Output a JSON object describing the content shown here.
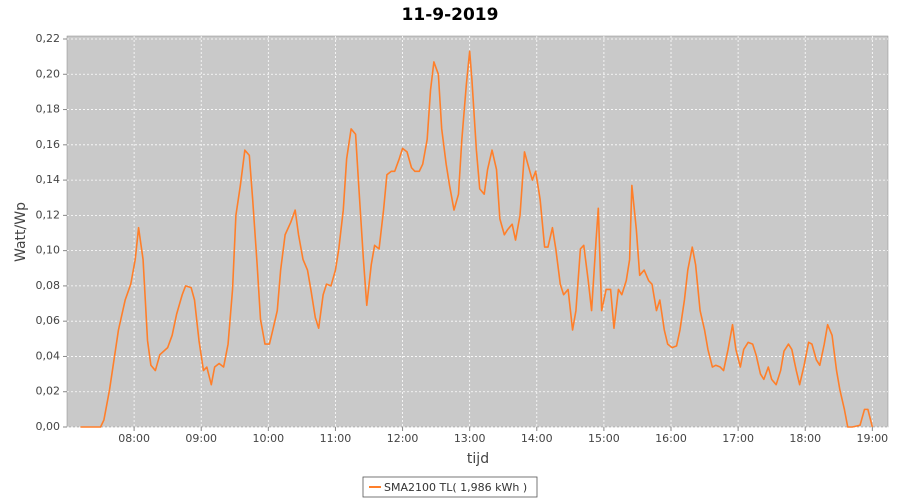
{
  "chart_data": {
    "type": "line",
    "title": "11-9-2019",
    "x_label": "tijd",
    "y_label": "Watt/Wp",
    "xlim": [
      "07:00",
      "19:14"
    ],
    "ylim": [
      0,
      0.22
    ],
    "xticks": [
      "08:00",
      "09:00",
      "10:00",
      "11:00",
      "12:00",
      "13:00",
      "14:00",
      "15:00",
      "16:00",
      "17:00",
      "18:00",
      "19:00"
    ],
    "yticks": [
      {
        "value": 0,
        "label": "0,00"
      },
      {
        "value": 0.02,
        "label": "0,02"
      },
      {
        "value": 0.04,
        "label": "0,04"
      },
      {
        "value": 0.06,
        "label": "0,06"
      },
      {
        "value": 0.08,
        "label": "0,08"
      },
      {
        "value": 0.1,
        "label": "0,10"
      },
      {
        "value": 0.12,
        "label": "0,12"
      },
      {
        "value": 0.14,
        "label": "0,14"
      },
      {
        "value": 0.16,
        "label": "0,16"
      },
      {
        "value": 0.18,
        "label": "0,18"
      },
      {
        "value": 0.2,
        "label": "0,20"
      },
      {
        "value": 0.22,
        "label": "0,22"
      }
    ],
    "grid": true,
    "legend": "bottom",
    "x": [
      "07:12",
      "07:30",
      "07:33",
      "07:38",
      "07:46",
      "07:52",
      "07:57",
      "08:01",
      "08:04",
      "08:08",
      "08:12",
      "08:15",
      "08:19",
      "08:23",
      "08:30",
      "08:34",
      "08:38",
      "08:43",
      "08:46",
      "08:51",
      "08:54",
      "08:58",
      "09:02",
      "09:05",
      "09:09",
      "09:12",
      "09:16",
      "09:20",
      "09:24",
      "09:28",
      "09:31",
      "09:35",
      "09:39",
      "09:43",
      "09:46",
      "09:50",
      "09:53",
      "09:57",
      "10:01",
      "10:04",
      "10:08",
      "10:11",
      "10:15",
      "10:20",
      "10:24",
      "10:27",
      "10:31",
      "10:35",
      "10:38",
      "10:42",
      "10:45",
      "10:49",
      "10:52",
      "10:56",
      "11:00",
      "11:03",
      "11:07",
      "11:10",
      "11:14",
      "11:18",
      "11:21",
      "11:25",
      "11:28",
      "11:32",
      "11:35",
      "11:39",
      "11:43",
      "11:46",
      "11:50",
      "11:53",
      "11:57",
      "12:00",
      "12:04",
      "12:08",
      "12:11",
      "12:15",
      "12:18",
      "12:22",
      "12:25",
      "12:28",
      "12:32",
      "12:35",
      "12:39",
      "12:42",
      "12:46",
      "12:50",
      "12:53",
      "12:57",
      "13:00",
      "13:02",
      "13:06",
      "13:09",
      "13:13",
      "13:16",
      "13:20",
      "13:24",
      "13:27",
      "13:31",
      "13:34",
      "13:38",
      "13:41",
      "13:45",
      "13:49",
      "13:52",
      "13:56",
      "13:59",
      "14:03",
      "14:07",
      "14:10",
      "14:14",
      "14:17",
      "14:21",
      "14:24",
      "14:28",
      "14:32",
      "14:35",
      "14:39",
      "14:42",
      "14:46",
      "14:49",
      "14:53",
      "14:55",
      "14:58",
      "15:02",
      "15:06",
      "15:09",
      "15:13",
      "15:16",
      "15:20",
      "15:23",
      "15:25",
      "15:29",
      "15:32",
      "15:36",
      "15:40",
      "15:43",
      "15:47",
      "15:50",
      "15:54",
      "15:57",
      "16:01",
      "16:05",
      "16:08",
      "16:12",
      "16:15",
      "16:19",
      "16:22",
      "16:26",
      "16:30",
      "16:33",
      "16:37",
      "16:40",
      "16:44",
      "16:47",
      "16:51",
      "16:55",
      "16:58",
      "17:02",
      "17:05",
      "17:09",
      "17:13",
      "17:16",
      "17:20",
      "17:23",
      "17:27",
      "17:30",
      "17:34",
      "17:38",
      "17:41",
      "17:45",
      "17:48",
      "17:52",
      "17:55",
      "17:59",
      "18:03",
      "18:06",
      "18:10",
      "18:13",
      "18:17",
      "18:20",
      "18:24",
      "18:28",
      "18:31",
      "18:35",
      "18:38",
      "18:42",
      "18:49",
      "18:53",
      "18:56",
      "19:00"
    ],
    "series": [
      {
        "name": "SMA2100 TL( 1,986 kWh )",
        "color": "#ff7f2a",
        "values": [
          0,
          0,
          0.004,
          0.021,
          0.055,
          0.072,
          0.081,
          0.095,
          0.113,
          0.095,
          0.049,
          0.035,
          0.032,
          0.041,
          0.045,
          0.052,
          0.064,
          0.075,
          0.08,
          0.079,
          0.072,
          0.049,
          0.032,
          0.034,
          0.024,
          0.034,
          0.036,
          0.034,
          0.047,
          0.078,
          0.12,
          0.137,
          0.157,
          0.154,
          0.129,
          0.092,
          0.061,
          0.047,
          0.047,
          0.055,
          0.066,
          0.089,
          0.109,
          0.116,
          0.123,
          0.109,
          0.095,
          0.089,
          0.078,
          0.062,
          0.056,
          0.075,
          0.081,
          0.08,
          0.089,
          0.101,
          0.123,
          0.152,
          0.169,
          0.166,
          0.135,
          0.095,
          0.069,
          0.092,
          0.103,
          0.101,
          0.123,
          0.143,
          0.145,
          0.145,
          0.152,
          0.158,
          0.156,
          0.147,
          0.145,
          0.145,
          0.149,
          0.163,
          0.191,
          0.207,
          0.2,
          0.169,
          0.149,
          0.137,
          0.123,
          0.132,
          0.163,
          0.194,
          0.213,
          0.197,
          0.157,
          0.135,
          0.132,
          0.146,
          0.157,
          0.146,
          0.118,
          0.109,
          0.112,
          0.115,
          0.106,
          0.12,
          0.156,
          0.149,
          0.14,
          0.145,
          0.129,
          0.102,
          0.102,
          0.113,
          0.101,
          0.081,
          0.075,
          0.078,
          0.055,
          0.066,
          0.101,
          0.103,
          0.083,
          0.066,
          0.106,
          0.124,
          0.066,
          0.078,
          0.078,
          0.056,
          0.078,
          0.075,
          0.083,
          0.095,
          0.137,
          0.112,
          0.086,
          0.089,
          0.083,
          0.081,
          0.066,
          0.072,
          0.055,
          0.047,
          0.045,
          0.046,
          0.055,
          0.072,
          0.089,
          0.102,
          0.092,
          0.066,
          0.055,
          0.044,
          0.034,
          0.035,
          0.034,
          0.032,
          0.044,
          0.058,
          0.044,
          0.034,
          0.044,
          0.048,
          0.047,
          0.041,
          0.03,
          0.027,
          0.034,
          0.027,
          0.024,
          0.032,
          0.043,
          0.047,
          0.044,
          0.032,
          0.024,
          0.035,
          0.048,
          0.047,
          0.038,
          0.035,
          0.047,
          0.058,
          0.052,
          0.032,
          0.021,
          0.01,
          0,
          0,
          0.001,
          0.01,
          0.01,
          0
        ]
      }
    ]
  }
}
